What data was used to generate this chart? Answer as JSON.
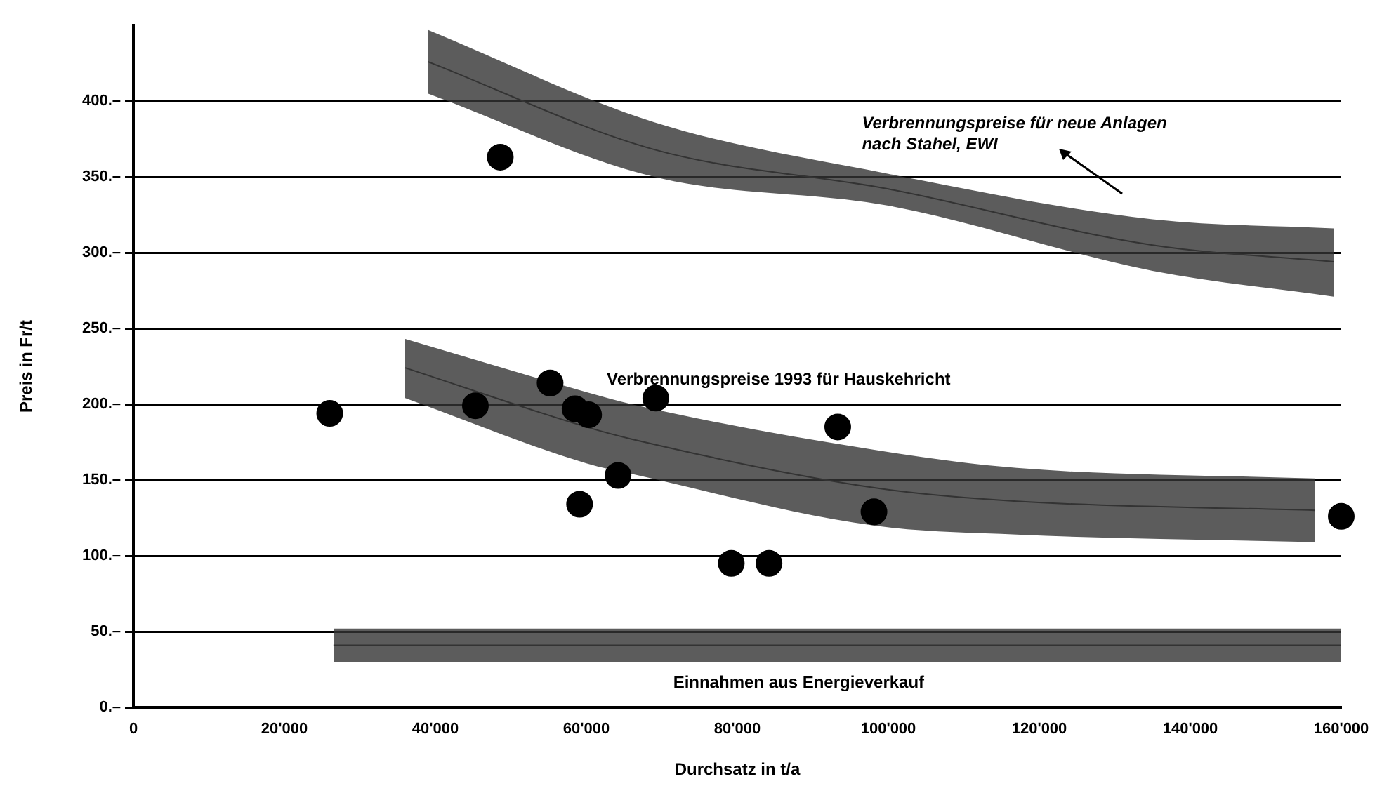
{
  "chart_data": {
    "type": "scatter",
    "xlabel": "Durchsatz in t/a",
    "ylabel": "Preis in Fr/t",
    "xlim": [
      0,
      160000
    ],
    "ylim": [
      0,
      450
    ],
    "xticks": [
      0,
      {
        "value": 20000,
        "label": "20'000"
      },
      {
        "value": 40000,
        "label": "40'000"
      },
      {
        "value": 60000,
        "label": "60'000"
      },
      {
        "value": 80000,
        "label": "80'000"
      },
      {
        "value": 100000,
        "label": "100'000"
      },
      {
        "value": 120000,
        "label": "120'000"
      },
      {
        "value": 140000,
        "label": "140'000"
      },
      {
        "value": 160000,
        "label": "160'000"
      }
    ],
    "yticks": [
      {
        "value": 0,
        "label": "0.–"
      },
      {
        "value": 50,
        "label": "50.–"
      },
      {
        "value": 100,
        "label": "100.–"
      },
      {
        "value": 150,
        "label": "150.–"
      },
      {
        "value": 200,
        "label": "200.–"
      },
      {
        "value": 250,
        "label": "250.–"
      },
      {
        "value": 300,
        "label": "300.–"
      },
      {
        "value": 350,
        "label": "350.–"
      },
      {
        "value": 400,
        "label": "400.–"
      }
    ],
    "grid": "y",
    "series": [
      {
        "type": "scatter",
        "marker": "circle",
        "color": "#000000",
        "x": [
          26000,
          48600,
          45300,
          55200,
          58500,
          60300,
          59100,
          64200,
          69200,
          93300,
          98100,
          79200,
          84200,
          160000
        ],
        "values": [
          194,
          363,
          199,
          214,
          197,
          193,
          134,
          153,
          204,
          185,
          129,
          95,
          95,
          126
        ]
      },
      {
        "type": "line",
        "name": "Verbrennungspreise für neue Anlagen nach Stahel, EWI",
        "color": "#333333",
        "x": [
          39000,
          69000,
          100000,
          135000,
          159000
        ],
        "values": [
          426,
          368,
          342,
          305,
          294
        ],
        "lower": [
          405,
          350,
          331,
          288,
          271
        ],
        "upper": [
          447,
          386,
          352,
          322,
          316
        ]
      },
      {
        "type": "line",
        "name": "Verbrennungspreise 1993 für Hauskehricht",
        "color": "#333333",
        "x": [
          36000,
          60000,
          66000,
          98000,
          117000,
          156500
        ],
        "values": [
          224,
          185,
          177,
          145,
          136,
          130
        ],
        "lower": [
          204,
          161,
          154,
          120,
          114,
          109
        ],
        "upper": [
          243,
          208,
          200,
          170,
          158,
          151
        ]
      },
      {
        "type": "line",
        "name": "Einnahmen aus Energieverkauf",
        "color": "#333333",
        "x": [
          26500,
          160000
        ],
        "values": [
          41,
          41
        ],
        "lower": [
          30,
          30
        ],
        "upper": [
          52,
          52
        ]
      }
    ]
  }
}
